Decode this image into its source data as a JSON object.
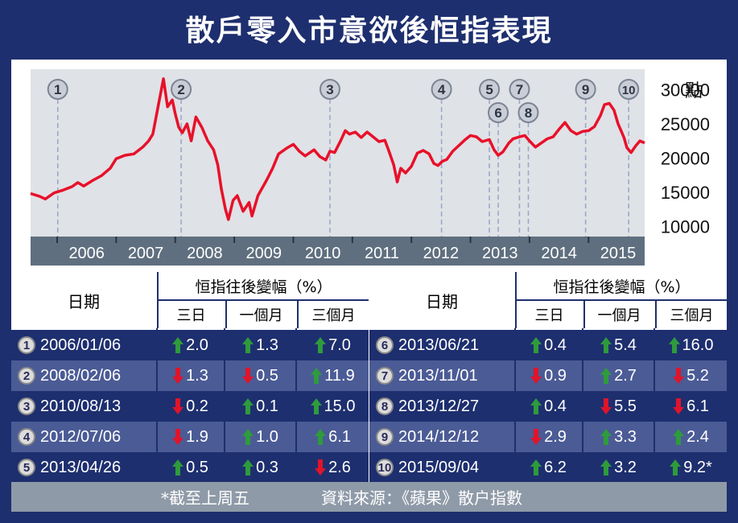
{
  "title": "散戶零入市意欲後恒指表現",
  "chart_data": {
    "type": "line",
    "unit_label": "點",
    "y_ticks": [
      10000,
      15000,
      20000,
      25000,
      30000
    ],
    "ylim": [
      8500,
      33000
    ],
    "x_labels": [
      "2006",
      "2007",
      "2008",
      "2009",
      "2010",
      "2011",
      "2012",
      "2013",
      "2014",
      "2015"
    ],
    "x_range": [
      2005.55,
      2015.95
    ],
    "series": [
      {
        "points": [
          [
            2005.55,
            14800
          ],
          [
            2005.7,
            14400
          ],
          [
            2005.8,
            14000
          ],
          [
            2005.95,
            14900
          ],
          [
            2006.1,
            15300
          ],
          [
            2006.25,
            15800
          ],
          [
            2006.35,
            16400
          ],
          [
            2006.45,
            15900
          ],
          [
            2006.6,
            16700
          ],
          [
            2006.75,
            17400
          ],
          [
            2006.9,
            18500
          ],
          [
            2007.0,
            19900
          ],
          [
            2007.15,
            20400
          ],
          [
            2007.3,
            20600
          ],
          [
            2007.45,
            21600
          ],
          [
            2007.55,
            22500
          ],
          [
            2007.62,
            23500
          ],
          [
            2007.72,
            28000
          ],
          [
            2007.8,
            31600
          ],
          [
            2007.87,
            27500
          ],
          [
            2007.95,
            28500
          ],
          [
            2008.0,
            26500
          ],
          [
            2008.06,
            24500
          ],
          [
            2008.12,
            23700
          ],
          [
            2008.2,
            25000
          ],
          [
            2008.27,
            22500
          ],
          [
            2008.35,
            26000
          ],
          [
            2008.45,
            24500
          ],
          [
            2008.55,
            22500
          ],
          [
            2008.65,
            21200
          ],
          [
            2008.72,
            19000
          ],
          [
            2008.78,
            15500
          ],
          [
            2008.85,
            12500
          ],
          [
            2008.9,
            11000
          ],
          [
            2008.98,
            13800
          ],
          [
            2009.05,
            14500
          ],
          [
            2009.15,
            12200
          ],
          [
            2009.25,
            13500
          ],
          [
            2009.3,
            11500
          ],
          [
            2009.4,
            14500
          ],
          [
            2009.55,
            16800
          ],
          [
            2009.65,
            18500
          ],
          [
            2009.75,
            20600
          ],
          [
            2009.9,
            21500
          ],
          [
            2010.0,
            22000
          ],
          [
            2010.1,
            21000
          ],
          [
            2010.2,
            20300
          ],
          [
            2010.35,
            21200
          ],
          [
            2010.45,
            20200
          ],
          [
            2010.55,
            19700
          ],
          [
            2010.62,
            21000
          ],
          [
            2010.7,
            20800
          ],
          [
            2010.8,
            22500
          ],
          [
            2010.88,
            24000
          ],
          [
            2010.95,
            23500
          ],
          [
            2011.05,
            23800
          ],
          [
            2011.15,
            23000
          ],
          [
            2011.25,
            23800
          ],
          [
            2011.35,
            23100
          ],
          [
            2011.45,
            22400
          ],
          [
            2011.55,
            22600
          ],
          [
            2011.62,
            21000
          ],
          [
            2011.7,
            19000
          ],
          [
            2011.76,
            16500
          ],
          [
            2011.82,
            18500
          ],
          [
            2011.9,
            17800
          ],
          [
            2012.0,
            18800
          ],
          [
            2012.1,
            20700
          ],
          [
            2012.2,
            21100
          ],
          [
            2012.3,
            20600
          ],
          [
            2012.38,
            19200
          ],
          [
            2012.45,
            18900
          ],
          [
            2012.52,
            19500
          ],
          [
            2012.6,
            19800
          ],
          [
            2012.7,
            21000
          ],
          [
            2012.8,
            21800
          ],
          [
            2012.9,
            22600
          ],
          [
            2013.0,
            23300
          ],
          [
            2013.1,
            23100
          ],
          [
            2013.2,
            22400
          ],
          [
            2013.32,
            22700
          ],
          [
            2013.4,
            21200
          ],
          [
            2013.47,
            20400
          ],
          [
            2013.55,
            20900
          ],
          [
            2013.65,
            22200
          ],
          [
            2013.72,
            22800
          ],
          [
            2013.83,
            23100
          ],
          [
            2013.92,
            23300
          ],
          [
            2014.0,
            22500
          ],
          [
            2014.1,
            21600
          ],
          [
            2014.2,
            22200
          ],
          [
            2014.3,
            22800
          ],
          [
            2014.4,
            23100
          ],
          [
            2014.5,
            24200
          ],
          [
            2014.6,
            25200
          ],
          [
            2014.7,
            24000
          ],
          [
            2014.8,
            23500
          ],
          [
            2014.9,
            23900
          ],
          [
            2015.0,
            24000
          ],
          [
            2015.1,
            24600
          ],
          [
            2015.2,
            26200
          ],
          [
            2015.27,
            27800
          ],
          [
            2015.35,
            28000
          ],
          [
            2015.43,
            27000
          ],
          [
            2015.5,
            25000
          ],
          [
            2015.55,
            24000
          ],
          [
            2015.6,
            23000
          ],
          [
            2015.65,
            21500
          ],
          [
            2015.72,
            20800
          ],
          [
            2015.8,
            21800
          ],
          [
            2015.87,
            22500
          ],
          [
            2015.95,
            22200
          ]
        ]
      }
    ],
    "markers": [
      {
        "label": "1",
        "x": 2006.01
      },
      {
        "label": "2",
        "x": 2008.1
      },
      {
        "label": "3",
        "x": 2010.62
      },
      {
        "label": "4",
        "x": 2012.51
      },
      {
        "label": "5",
        "x": 2013.32
      },
      {
        "label": "6",
        "x": 2013.47
      },
      {
        "label": "7",
        "x": 2013.83
      },
      {
        "label": "8",
        "x": 2013.98
      },
      {
        "label": "9",
        "x": 2014.95
      },
      {
        "label": "10",
        "x": 2015.68
      }
    ],
    "colors": {
      "line": "#e8102a",
      "plot_bg": "#dfe2e6",
      "axis_bar": "#5f6f7f",
      "marker_line": "#9aa4c8"
    }
  },
  "table": {
    "date_header": "日期",
    "change_header": "恒指往後變幅（%）",
    "sub_headers": [
      "三日",
      "一個月",
      "三個月"
    ],
    "up_color": "#2e9b3c",
    "down_color": "#e0142a",
    "left_rows": [
      {
        "num": "1",
        "date": "2006/01/06",
        "vals": [
          {
            "dir": "up",
            "text": "2.0"
          },
          {
            "dir": "up",
            "text": "1.3"
          },
          {
            "dir": "up",
            "text": "7.0"
          }
        ]
      },
      {
        "num": "2",
        "date": "2008/02/06",
        "vals": [
          {
            "dir": "down",
            "text": "1.3"
          },
          {
            "dir": "down",
            "text": "0.5"
          },
          {
            "dir": "up",
            "text": "11.9"
          }
        ]
      },
      {
        "num": "3",
        "date": "2010/08/13",
        "vals": [
          {
            "dir": "down",
            "text": "0.2"
          },
          {
            "dir": "up",
            "text": "0.1"
          },
          {
            "dir": "up",
            "text": "15.0"
          }
        ]
      },
      {
        "num": "4",
        "date": "2012/07/06",
        "vals": [
          {
            "dir": "down",
            "text": "1.9"
          },
          {
            "dir": "up",
            "text": "1.0"
          },
          {
            "dir": "up",
            "text": "6.1"
          }
        ]
      },
      {
        "num": "5",
        "date": "2013/04/26",
        "vals": [
          {
            "dir": "up",
            "text": "0.5"
          },
          {
            "dir": "up",
            "text": "0.3"
          },
          {
            "dir": "down",
            "text": "2.6"
          }
        ]
      }
    ],
    "right_rows": [
      {
        "num": "6",
        "date": "2013/06/21",
        "vals": [
          {
            "dir": "up",
            "text": "0.4"
          },
          {
            "dir": "up",
            "text": "5.4"
          },
          {
            "dir": "up",
            "text": "16.0"
          }
        ]
      },
      {
        "num": "7",
        "date": "2013/11/01",
        "vals": [
          {
            "dir": "down",
            "text": "0.9"
          },
          {
            "dir": "up",
            "text": "2.7"
          },
          {
            "dir": "down",
            "text": "5.2"
          }
        ]
      },
      {
        "num": "8",
        "date": "2013/12/27",
        "vals": [
          {
            "dir": "up",
            "text": "0.4"
          },
          {
            "dir": "down",
            "text": "5.5"
          },
          {
            "dir": "down",
            "text": "6.1"
          }
        ]
      },
      {
        "num": "9",
        "date": "2014/12/12",
        "vals": [
          {
            "dir": "down",
            "text": "2.9"
          },
          {
            "dir": "up",
            "text": "3.3"
          },
          {
            "dir": "up",
            "text": "2.4"
          }
        ]
      },
      {
        "num": "10",
        "date": "2015/09/04",
        "vals": [
          {
            "dir": "up",
            "text": "6.2"
          },
          {
            "dir": "up",
            "text": "3.2"
          },
          {
            "dir": "up",
            "text": "9.2*"
          }
        ]
      }
    ]
  },
  "footer": {
    "note": "*截至上周五",
    "source": "資料來源：《蘋果》散户指數"
  }
}
